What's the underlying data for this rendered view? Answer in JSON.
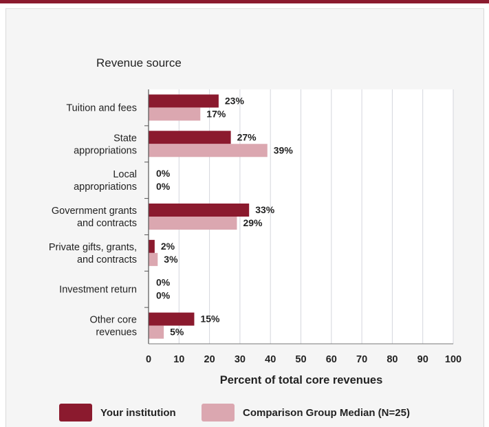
{
  "chart_data": {
    "type": "bar",
    "orientation": "horizontal",
    "title": "Revenue source",
    "xlabel": "Percent of total core revenues",
    "xlim": [
      0,
      100
    ],
    "xticks": [
      0,
      10,
      20,
      30,
      40,
      50,
      60,
      70,
      80,
      90,
      100
    ],
    "categories": [
      [
        "Tuition and fees"
      ],
      [
        "State",
        "appropriations"
      ],
      [
        "Local",
        "appropriations"
      ],
      [
        "Government grants",
        "and contracts"
      ],
      [
        "Private gifts, grants,",
        "and contracts"
      ],
      [
        "Investment return"
      ],
      [
        "Other core",
        "revenues"
      ]
    ],
    "series": [
      {
        "name": "Your institution",
        "color": "#8b1a2e",
        "values": [
          23,
          27,
          0,
          33,
          2,
          0,
          15
        ]
      },
      {
        "name": "Comparison Group Median (N=25)",
        "color": "#dba7b0",
        "values": [
          17,
          39,
          0,
          29,
          3,
          0,
          5
        ]
      }
    ],
    "value_suffix": "%",
    "grid": true,
    "legend_position": "bottom"
  }
}
